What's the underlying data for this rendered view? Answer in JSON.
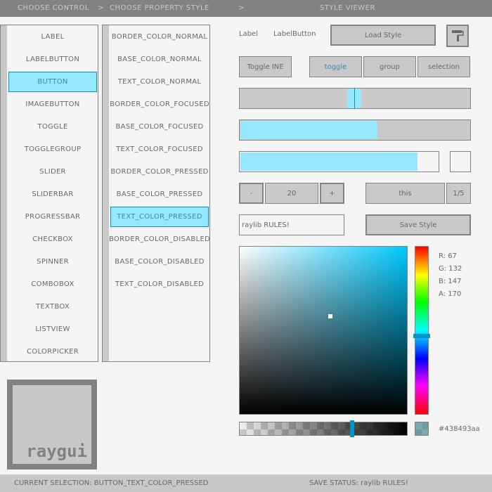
{
  "header": {
    "choose_control": "CHOOSE CONTROL",
    "sep1": ">",
    "choose_property": "CHOOSE PROPERTY STYLE",
    "sep2": ">",
    "style_viewer": "STYLE VIEWER"
  },
  "controls": [
    "LABEL",
    "LABELBUTTON",
    "BUTTON",
    "IMAGEBUTTON",
    "TOGGLE",
    "TOGGLEGROUP",
    "SLIDER",
    "SLIDERBAR",
    "PROGRESSBAR",
    "CHECKBOX",
    "SPINNER",
    "COMBOBOX",
    "TEXTBOX",
    "LISTVIEW",
    "COLORPICKER"
  ],
  "controls_selected": 2,
  "properties": [
    "BORDER_COLOR_NORMAL",
    "BASE_COLOR_NORMAL",
    "TEXT_COLOR_NORMAL",
    "BORDER_COLOR_FOCUSED",
    "BASE_COLOR_FOCUSED",
    "TEXT_COLOR_FOCUSED",
    "BORDER_COLOR_PRESSED",
    "BASE_COLOR_PRESSED",
    "TEXT_COLOR_PRESSED",
    "BORDER_COLOR_DISABLED",
    "BASE_COLOR_DISABLED",
    "TEXT_COLOR_DISABLED"
  ],
  "properties_selected": 8,
  "viewer": {
    "label": "Label",
    "label_button": "LabelButton",
    "load_style": "Load Style",
    "icon": "paint-roller-icon",
    "toggle": "Toggle INE",
    "toggle_group": [
      "toggle",
      "group",
      "selection"
    ],
    "toggle_group_active": 0,
    "slider_value": 0.5,
    "sliderbar_value": 0.6,
    "progress_value": 0.9,
    "checkbox_checked": false,
    "spinner_minus": "-",
    "spinner_value": "20",
    "spinner_plus": "+",
    "combo_value": "this",
    "combo_count": "1/5",
    "textbox_value": "raylib RULES!",
    "save_style": "Save Style"
  },
  "colorpicker": {
    "r": "R: 67",
    "g": "G: 132",
    "b": "B: 147",
    "a": "A: 170",
    "hex": "#438493aa",
    "hue_color": "#00c8ff",
    "swatch": "#438493"
  },
  "logo": "raygui",
  "status": {
    "selection": "CURRENT SELECTION: BUTTON_TEXT_COLOR_PRESSED",
    "save": "SAVE STATUS: raylib RULES!"
  },
  "colors": {
    "accent": "#97e8ff",
    "accent_border": "#0492c7",
    "base": "#c9c9c9",
    "border": "#838383",
    "bg": "#f5f5f5"
  }
}
